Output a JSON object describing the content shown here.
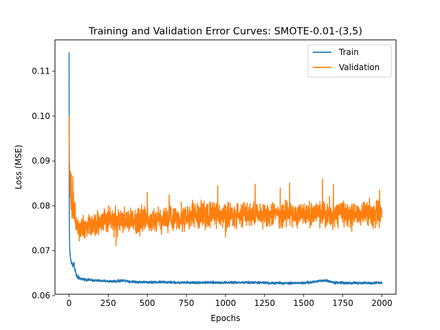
{
  "chart_data": {
    "type": "line",
    "title": "Training and Validation Error Curves: SMOTE-0.01-(3,5)",
    "xlabel": "Epochs",
    "ylabel": "Loss (MSE)",
    "xlim": [
      -90,
      2090
    ],
    "ylim": [
      0.0603,
      0.117
    ],
    "xticks": [
      0,
      250,
      500,
      750,
      1000,
      1250,
      1500,
      1750,
      2000
    ],
    "yticks": [
      0.06,
      0.07,
      0.08,
      0.09,
      0.1,
      0.11
    ],
    "ytick_labels": [
      "0.06",
      "0.07",
      "0.08",
      "0.09",
      "0.10",
      "0.11"
    ],
    "legend_position": "top-right",
    "grid": false,
    "epochs": 2000,
    "series": [
      {
        "name": "Train",
        "color": "#1f77b4",
        "noise": 0.00025,
        "points": [
          [
            0,
            0.1142
          ],
          [
            1,
            0.08
          ],
          [
            2,
            0.0742
          ],
          [
            4,
            0.071
          ],
          [
            6,
            0.0695
          ],
          [
            10,
            0.068
          ],
          [
            15,
            0.0673
          ],
          [
            25,
            0.0668
          ],
          [
            30,
            0.0672
          ],
          [
            35,
            0.0665
          ],
          [
            40,
            0.0655
          ],
          [
            45,
            0.0648
          ],
          [
            50,
            0.0642
          ],
          [
            60,
            0.0639
          ],
          [
            80,
            0.0637
          ],
          [
            100,
            0.0636
          ],
          [
            150,
            0.0634
          ],
          [
            200,
            0.0633
          ],
          [
            250,
            0.0632
          ],
          [
            300,
            0.0632
          ],
          [
            350,
            0.0634
          ],
          [
            400,
            0.0631
          ],
          [
            500,
            0.063
          ],
          [
            600,
            0.063
          ],
          [
            700,
            0.0629
          ],
          [
            800,
            0.0629
          ],
          [
            900,
            0.0629
          ],
          [
            1000,
            0.0629
          ],
          [
            1100,
            0.0629
          ],
          [
            1200,
            0.0629
          ],
          [
            1300,
            0.0628
          ],
          [
            1400,
            0.0628
          ],
          [
            1500,
            0.0628
          ],
          [
            1560,
            0.063
          ],
          [
            1600,
            0.0633
          ],
          [
            1630,
            0.0634
          ],
          [
            1660,
            0.0632
          ],
          [
            1700,
            0.0629
          ],
          [
            1800,
            0.0628
          ],
          [
            1900,
            0.0628
          ],
          [
            2000,
            0.0629
          ]
        ]
      },
      {
        "name": "Validation",
        "color": "#ff7f0e",
        "noise": 0.0026,
        "points": [
          [
            0,
            0.1002
          ],
          [
            2,
            0.09
          ],
          [
            4,
            0.087
          ],
          [
            8,
            0.084
          ],
          [
            15,
            0.0815
          ],
          [
            25,
            0.08
          ],
          [
            40,
            0.077
          ],
          [
            60,
            0.0755
          ],
          [
            100,
            0.0755
          ],
          [
            150,
            0.076
          ],
          [
            200,
            0.0765
          ],
          [
            300,
            0.0765
          ],
          [
            400,
            0.0768
          ],
          [
            500,
            0.077
          ],
          [
            600,
            0.0772
          ],
          [
            700,
            0.0775
          ],
          [
            800,
            0.0777
          ],
          [
            900,
            0.0779
          ],
          [
            1000,
            0.078
          ],
          [
            1100,
            0.078
          ],
          [
            1200,
            0.078
          ],
          [
            1300,
            0.0781
          ],
          [
            1400,
            0.078
          ],
          [
            1500,
            0.078
          ],
          [
            1600,
            0.0782
          ],
          [
            1700,
            0.0782
          ],
          [
            1800,
            0.0782
          ],
          [
            1900,
            0.0783
          ],
          [
            2000,
            0.0783
          ]
        ],
        "spikes": [
          [
            15,
            0.087
          ],
          [
            25,
            0.0865
          ],
          [
            40,
            0.076
          ],
          [
            65,
            0.0722
          ],
          [
            300,
            0.0711
          ],
          [
            500,
            0.083
          ],
          [
            640,
            0.0825
          ],
          [
            950,
            0.0845
          ],
          [
            1000,
            0.073
          ],
          [
            1190,
            0.0848
          ],
          [
            1350,
            0.084
          ],
          [
            1410,
            0.0851
          ],
          [
            1620,
            0.086
          ],
          [
            1690,
            0.0848
          ],
          [
            1985,
            0.0835
          ],
          [
            1990,
            0.0765
          ]
        ]
      }
    ]
  }
}
